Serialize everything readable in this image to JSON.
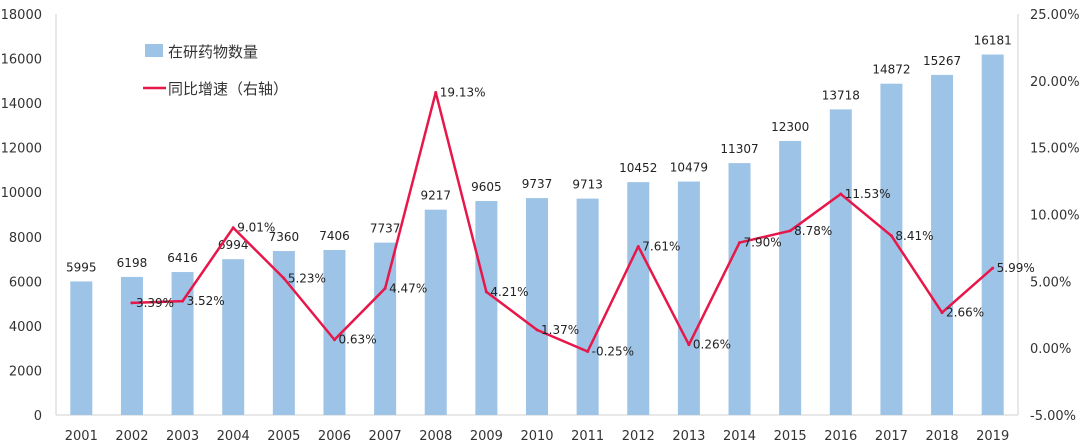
{
  "chart_data": {
    "type": "bar",
    "categories": [
      "2001",
      "2002",
      "2003",
      "2004",
      "2005",
      "2006",
      "2007",
      "2008",
      "2009",
      "2010",
      "2011",
      "2012",
      "2013",
      "2014",
      "2015",
      "2016",
      "2017",
      "2018",
      "2019"
    ],
    "series": [
      {
        "name": "在研药物数量",
        "type": "bar",
        "axis": "left",
        "values": [
          5995,
          6198,
          6416,
          6994,
          7360,
          7406,
          7737,
          9217,
          9605,
          9737,
          9713,
          10452,
          10479,
          11307,
          12300,
          13718,
          14872,
          15267,
          16181
        ],
        "labels": [
          "5995",
          "6198",
          "6416",
          "6994",
          "7360",
          "7406",
          "7737",
          "9217",
          "9605",
          "9737",
          "9713",
          "10452",
          "10479",
          "11307",
          "12300",
          "13718",
          "14872",
          "15267",
          "16181"
        ]
      },
      {
        "name": "同比增速（右轴）",
        "type": "line",
        "axis": "right",
        "values": [
          null,
          3.39,
          3.52,
          9.01,
          5.23,
          0.63,
          4.47,
          19.13,
          4.21,
          1.37,
          -0.25,
          7.61,
          0.26,
          7.9,
          8.78,
          11.53,
          8.41,
          2.66,
          5.99
        ],
        "labels": [
          "",
          "3.39%",
          "3.52%",
          "9.01%",
          "5.23%",
          "0.63%",
          "4.47%",
          "19.13%",
          "4.21%",
          "1.37%",
          "-0.25%",
          "7.61%",
          "0.26%",
          "7.90%",
          "8.78%",
          "11.53%",
          "8.41%",
          "2.66%",
          "5.99%"
        ]
      }
    ],
    "ylim": [
      0,
      18000
    ],
    "yticks": [
      "0",
      "2000",
      "4000",
      "6000",
      "8000",
      "10000",
      "12000",
      "14000",
      "16000",
      "18000"
    ],
    "y2lim": [
      -5,
      25
    ],
    "y2ticks": [
      "-5.00%",
      "0.00%",
      "5.00%",
      "10.00%",
      "15.00%",
      "20.00%",
      "25.00%"
    ],
    "legend_position": "top-left",
    "grid": false,
    "colors": {
      "bar": "#9dc3e6",
      "line": "#e8174a"
    }
  }
}
